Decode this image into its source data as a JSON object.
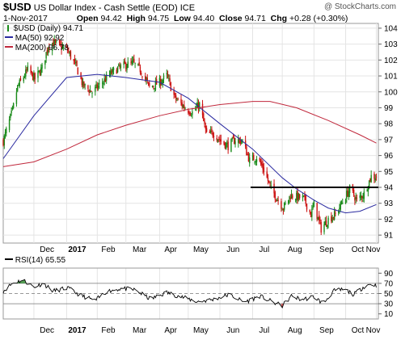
{
  "header": {
    "symbol": "$USD",
    "name": "US Dollar Index - Cash Settle (EOD)",
    "exchange": "ICE",
    "watermark": "@ StockCharts.com",
    "date": "1-Nov-2017",
    "open_label": "Open",
    "open": "94.42",
    "high_label": "High",
    "high": "94.75",
    "low_label": "Low",
    "low": "94.40",
    "close_label": "Close",
    "close": "94.71",
    "chg_label": "Chg",
    "chg": "+0.28 (+0.30%)"
  },
  "legend": {
    "price": "$USD (Daily) 94.71",
    "ma50": "MA(50) 92.92",
    "ma200": "MA(200) 96.78",
    "rsi": "RSI(14) 65.55"
  },
  "colors": {
    "price_up": "#1a8a1a",
    "price_down": "#cc1111",
    "ma50": "#2a2aa0",
    "ma200": "#c0283c",
    "grid": "#e4e4e4",
    "rsi_line": "#000000",
    "rsi_over": "#2a8a2a",
    "rsi_under": "#c03030",
    "support": "#000000"
  },
  "chart_data": [
    {
      "type": "line",
      "title": "$USD US Dollar Index - Cash Settle (EOD) ICE",
      "x_ticks": [
        "Dec",
        "2017",
        "Feb",
        "Mar",
        "Apr",
        "May",
        "Jun",
        "Jul",
        "Aug",
        "Sep",
        "Oct",
        "Nov"
      ],
      "y_ticks": [
        91,
        92,
        93,
        94,
        95,
        96,
        97,
        98,
        99,
        100,
        101,
        102,
        103,
        104
      ],
      "ylim": [
        90.5,
        104.3
      ],
      "series": [
        {
          "name": "$USD (Daily) 94.71",
          "x": [
            "2016-11-01",
            "2016-11-10",
            "2016-11-15",
            "2016-11-25",
            "2016-12-02",
            "2016-12-09",
            "2016-12-15",
            "2016-12-20",
            "2016-12-28",
            "2017-01-03",
            "2017-01-12",
            "2017-01-18",
            "2017-01-27",
            "2017-02-03",
            "2017-02-09",
            "2017-02-15",
            "2017-02-22",
            "2017-03-01",
            "2017-03-08",
            "2017-03-15",
            "2017-03-24",
            "2017-04-03",
            "2017-04-10",
            "2017-04-18",
            "2017-04-28",
            "2017-05-05",
            "2017-05-12",
            "2017-05-19",
            "2017-05-26",
            "2017-06-02",
            "2017-06-09",
            "2017-06-16",
            "2017-06-23",
            "2017-06-30",
            "2017-07-07",
            "2017-07-14",
            "2017-07-21",
            "2017-07-28",
            "2017-08-02",
            "2017-08-09",
            "2017-08-15",
            "2017-08-22",
            "2017-08-29",
            "2017-09-01",
            "2017-09-08",
            "2017-09-15",
            "2017-09-22",
            "2017-09-29",
            "2017-10-06",
            "2017-10-13",
            "2017-10-20",
            "2017-10-27",
            "2017-11-01"
          ],
          "values": [
            96.9,
            98.8,
            100.3,
            101.4,
            100.8,
            101.5,
            102.9,
            103.1,
            102.8,
            102.6,
            101.5,
            100.4,
            100.0,
            100.4,
            100.8,
            101.2,
            101.5,
            101.7,
            101.8,
            101.4,
            100.3,
            100.6,
            101.0,
            99.6,
            99.0,
            98.7,
            99.2,
            97.3,
            97.4,
            96.9,
            96.6,
            97.0,
            96.9,
            95.7,
            95.9,
            95.1,
            93.9,
            93.2,
            92.7,
            93.5,
            93.4,
            93.3,
            92.3,
            92.9,
            91.4,
            92.0,
            92.3,
            93.1,
            93.9,
            93.2,
            93.6,
            94.7,
            94.7
          ]
        },
        {
          "name": "MA(50) 92.92",
          "x": [
            "2016-11-01",
            "2016-12-01",
            "2017-01-02",
            "2017-02-01",
            "2017-03-01",
            "2017-04-03",
            "2017-05-01",
            "2017-06-01",
            "2017-07-03",
            "2017-08-01",
            "2017-08-15",
            "2017-09-01",
            "2017-09-15",
            "2017-10-02",
            "2017-10-16",
            "2017-11-01"
          ],
          "values": [
            95.8,
            98.5,
            100.9,
            101.1,
            100.9,
            100.6,
            99.6,
            98.0,
            96.4,
            94.6,
            93.9,
            93.2,
            92.7,
            92.4,
            92.5,
            92.92
          ]
        },
        {
          "name": "MA(200) 96.78",
          "x": [
            "2016-11-01",
            "2016-12-01",
            "2017-01-02",
            "2017-02-01",
            "2017-03-01",
            "2017-04-03",
            "2017-05-01",
            "2017-06-01",
            "2017-07-03",
            "2017-07-20",
            "2017-08-15",
            "2017-09-15",
            "2017-10-16",
            "2017-11-01"
          ],
          "values": [
            95.3,
            95.6,
            96.4,
            97.3,
            97.9,
            98.5,
            98.9,
            99.2,
            99.4,
            99.4,
            99.0,
            98.2,
            97.3,
            96.78
          ]
        }
      ],
      "annotations": [
        {
          "type": "horizontal_line",
          "y": 94.0,
          "from": "2017-07-01",
          "to": "2017-11-03"
        }
      ]
    },
    {
      "type": "line",
      "title": "RSI(14) 65.55",
      "x_ticks": [
        "Dec",
        "2017",
        "Feb",
        "Mar",
        "Apr",
        "May",
        "Jun",
        "Jul",
        "Aug",
        "Sep",
        "Oct",
        "Nov"
      ],
      "y_ticks": [
        10,
        30,
        50,
        70,
        90
      ],
      "ylim": [
        0,
        100
      ],
      "levels": [
        30,
        50,
        70
      ],
      "series": [
        {
          "name": "RSI(14) 65.55",
          "x": [
            "2016-11-01",
            "2016-11-10",
            "2016-11-20",
            "2016-12-01",
            "2016-12-10",
            "2016-12-20",
            "2017-01-03",
            "2017-01-15",
            "2017-01-30",
            "2017-02-10",
            "2017-02-25",
            "2017-03-10",
            "2017-03-25",
            "2017-04-10",
            "2017-04-25",
            "2017-05-10",
            "2017-05-25",
            "2017-06-10",
            "2017-06-25",
            "2017-07-10",
            "2017-07-25",
            "2017-08-01",
            "2017-08-10",
            "2017-08-20",
            "2017-09-01",
            "2017-09-10",
            "2017-09-20",
            "2017-10-01",
            "2017-10-10",
            "2017-10-20",
            "2017-10-27",
            "2017-11-01"
          ],
          "values": [
            55,
            70,
            77,
            63,
            70,
            55,
            61,
            47,
            36,
            54,
            60,
            57,
            39,
            52,
            43,
            34,
            38,
            48,
            33,
            45,
            31,
            26,
            45,
            38,
            44,
            30,
            55,
            58,
            48,
            64,
            69,
            65.55
          ]
        }
      ]
    }
  ]
}
